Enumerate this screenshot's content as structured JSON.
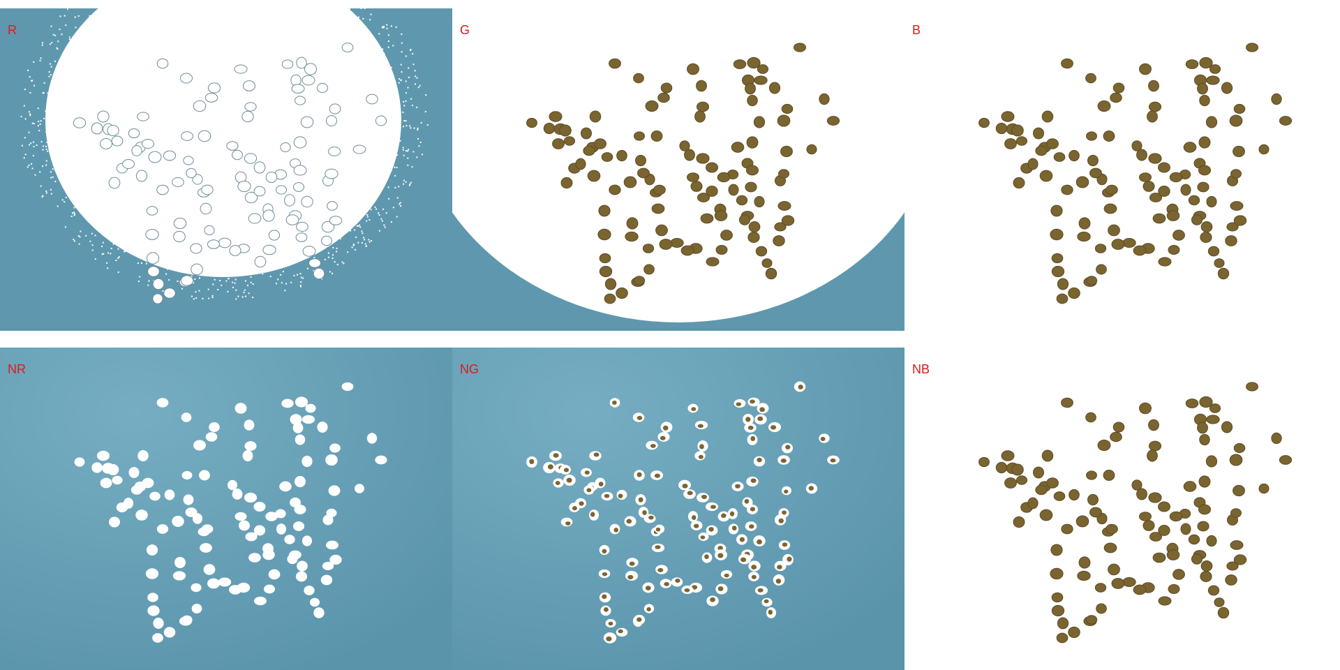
{
  "panels": {
    "r": {
      "label": "R"
    },
    "g": {
      "label": "G"
    },
    "b": {
      "label": "B"
    },
    "nr": {
      "label": "NR"
    },
    "ng": {
      "label": "NG"
    },
    "nb": {
      "label": "NB"
    }
  },
  "colors": {
    "background_blue": "#5f98ae",
    "seed_brown": "#7a6531",
    "seed_dark": "#5c4a22",
    "mask_white": "#ffffff",
    "label_red": "#e0181b"
  }
}
